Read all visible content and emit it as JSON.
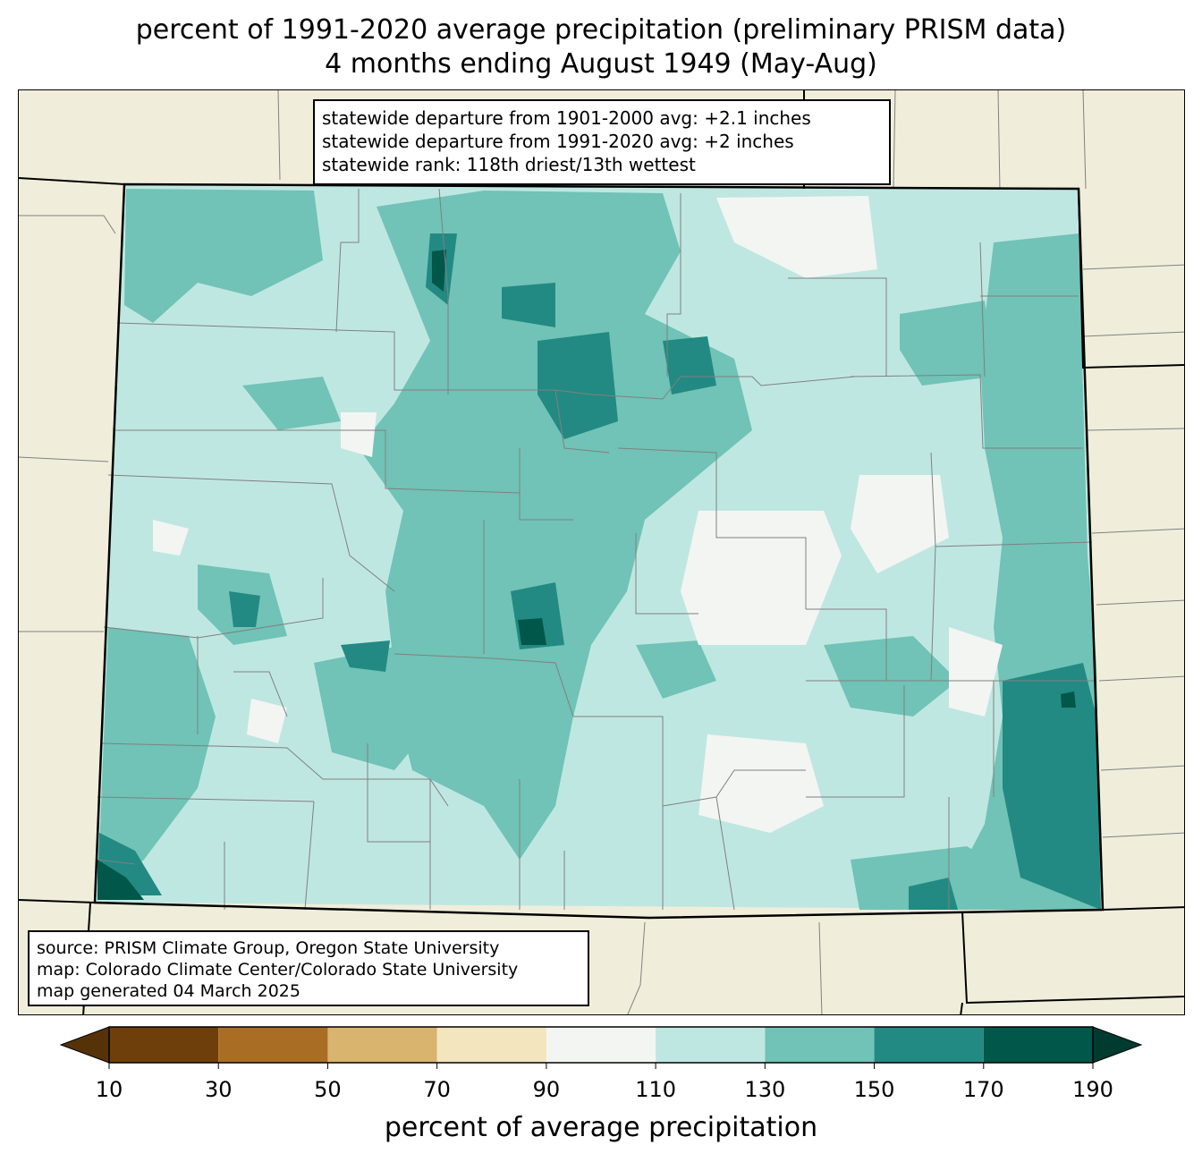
{
  "title": {
    "line1": "percent of 1991-2020 average precipitation (preliminary PRISM data)",
    "line2": "4 months ending August 1949 (May-Aug)"
  },
  "stats": {
    "line1": "statewide departure from 1901-2000 avg: +2.1 inches",
    "line2": "statewide departure from 1991-2020 avg: +2 inches",
    "line3": "statewide rank: 118th driest/13th wettest"
  },
  "source": {
    "line1": "source: PRISM Climate Group, Oregon State University",
    "line2": "map: Colorado Climate Center/Colorado State University",
    "line3": "map generated 04 March 2025"
  },
  "colors": {
    "background_land": "#f0eedb",
    "county_line": "#808080",
    "state_line": "#000000"
  },
  "colorbar": {
    "label": "percent of average precipitation",
    "ticks": [
      "10",
      "30",
      "50",
      "70",
      "90",
      "110",
      "130",
      "150",
      "170",
      "190"
    ],
    "bins": [
      {
        "range": "10-30",
        "color": "#6e3f0b"
      },
      {
        "range": "30-50",
        "color": "#a96e24"
      },
      {
        "range": "50-70",
        "color": "#d8b46e"
      },
      {
        "range": "70-90",
        "color": "#f3e5bd"
      },
      {
        "range": "90-110",
        "color": "#f3f5f3"
      },
      {
        "range": "110-130",
        "color": "#bfe7e1"
      },
      {
        "range": "130-150",
        "color": "#70c3b6"
      },
      {
        "range": "150-170",
        "color": "#228a82"
      },
      {
        "range": "170-190",
        "color": "#00574a"
      }
    ],
    "under_color": "#553208",
    "over_color": "#003b30"
  }
}
